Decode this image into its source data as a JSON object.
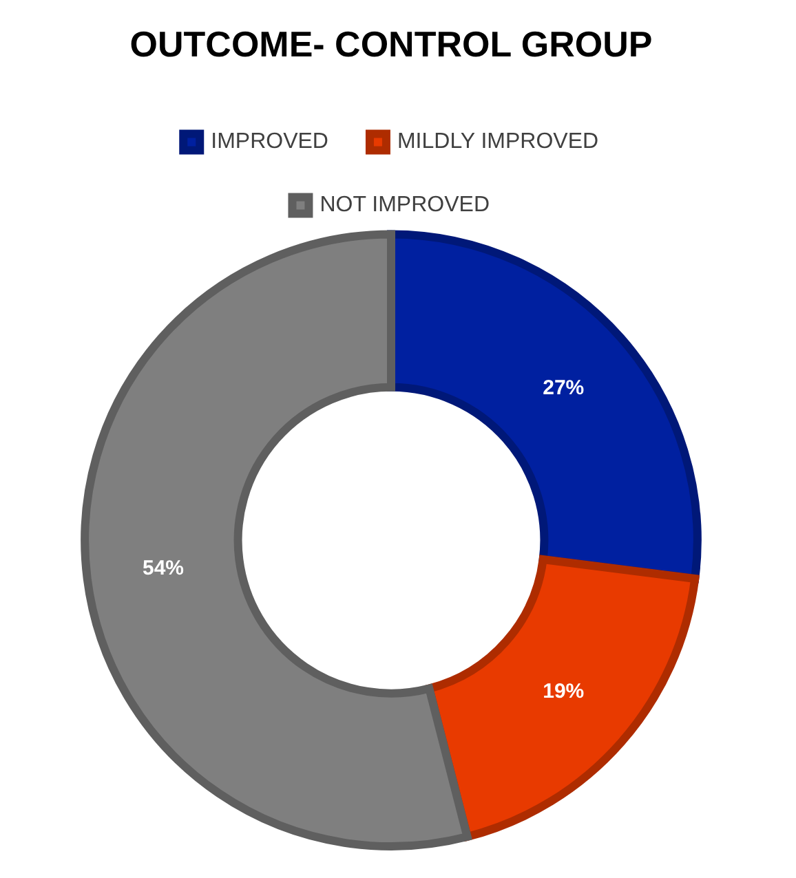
{
  "chart_data": {
    "type": "donut",
    "title": "OUTCOME- CONTROL GROUP",
    "categories": [
      "IMPROVED",
      "MILDLY IMPROVED",
      "NOT IMPROVED"
    ],
    "values": [
      27,
      19,
      54
    ],
    "colors": [
      "#0020a0",
      "#e83a00",
      "#7f7f7f"
    ],
    "value_labels": [
      "27%",
      "19%",
      "54%"
    ],
    "legend": "top"
  }
}
